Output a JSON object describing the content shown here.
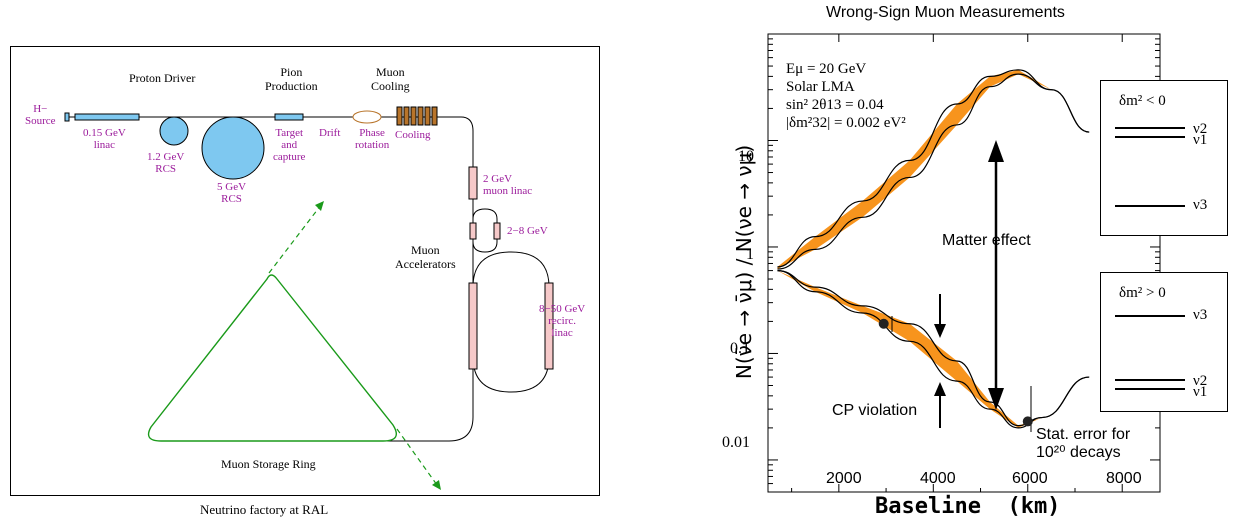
{
  "left_diagram": {
    "caption": "Neutrino factory at RAL",
    "labels": {
      "proton_driver": "Proton Driver",
      "pion_production": "Pion\nProduction",
      "muon_cooling": "Muon\nCooling",
      "h_source": "H−\nSource",
      "linac": "0.15 GeV\nlinac",
      "rcs_small": "1.2 GeV\nRCS",
      "rcs_large": "5 GeV\nRCS",
      "target": "Target\nand\ncapture",
      "drift": "Drift",
      "phase_rotation": "Phase\nrotation",
      "cooling": "Cooling",
      "muon_linac": "2 GeV\nmuon linac",
      "ghz": "2−8 GeV",
      "muon_accelerators": "Muon\nAccelerators",
      "recirc_linac": "8−50 GeV\nrecirc.\nlinac",
      "storage_ring": "Muon Storage Ring"
    },
    "colors": {
      "accent": "#9b1b9b",
      "ring": "#1a9a1a",
      "rcs": "#7ec8f0",
      "linac": "#f6c9c9",
      "cooling": "#b8742a"
    }
  },
  "chart_data": {
    "type": "line",
    "title": "Wrong-Sign Muon Measurements",
    "xlabel": "Baseline  (km)",
    "ylabel": "N(ν̄e → ν̄μ) / N(νe → νμ)",
    "xlim": [
      500,
      8800
    ],
    "ylim": [
      0.005,
      100
    ],
    "yscale": "log",
    "xticks": [
      "2000",
      "4000",
      "6000",
      "8000"
    ],
    "yticks": [
      "0.01",
      "0.1",
      "1",
      "10"
    ],
    "params": [
      "Eμ = 20 GeV",
      "Solar LMA",
      "sin² 2θ13 = 0.04",
      "|δm²32| = 0.002 eV²"
    ],
    "series": [
      {
        "x": [
          700,
          1500,
          2500,
          3500,
          4500,
          5200,
          5800,
          6500,
          7300
        ],
        "y": [
          0.62,
          0.95,
          1.9,
          4.5,
          14,
          32,
          42,
          30,
          12
        ]
      },
      {
        "x": [
          700,
          1500,
          2500,
          3500,
          4500,
          5200,
          5800,
          6500,
          7300
        ],
        "y": [
          0.65,
          1.25,
          2.7,
          6.5,
          22,
          40,
          46,
          30,
          12
        ]
      },
      {
        "x": [
          700,
          1500,
          2500,
          3500,
          4500,
          5200,
          5800,
          6300,
          7300
        ],
        "y": [
          0.6,
          0.38,
          0.24,
          0.13,
          0.055,
          0.03,
          0.02,
          0.025,
          0.06
        ]
      },
      {
        "x": [
          700,
          1500,
          2500,
          3500,
          4500,
          5200,
          5800,
          6300,
          7300
        ],
        "y": [
          0.6,
          0.42,
          0.28,
          0.19,
          0.085,
          0.035,
          0.021,
          0.025,
          0.06
        ]
      }
    ],
    "points": [
      {
        "x": 2950,
        "y": 0.19
      },
      {
        "x": 6000,
        "y": 0.023
      }
    ],
    "annotations": {
      "matter": "Matter effect",
      "cp": "CP violation",
      "stat": "Stat. error for\n10²⁰ decays"
    },
    "band_color": "#f7941d"
  },
  "hierarchy_boxes": [
    {
      "title": "δm² < 0",
      "levels": [
        "ν2",
        "ν1",
        "ν3"
      ]
    },
    {
      "title": "δm² > 0",
      "levels": [
        "ν3",
        "ν2",
        "ν1"
      ]
    }
  ]
}
